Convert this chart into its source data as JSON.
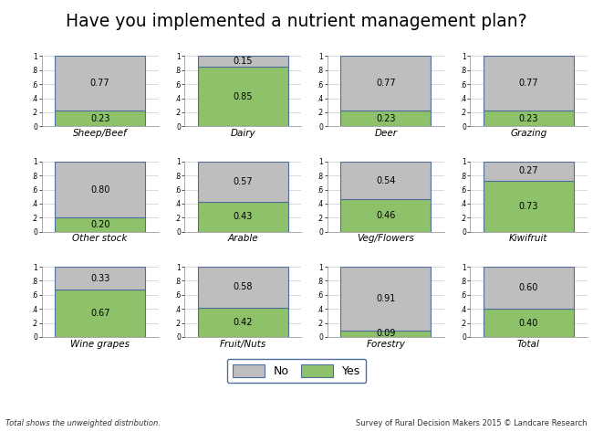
{
  "title": "Have you implemented a nutrient management plan?",
  "categories": [
    [
      "Sheep/Beef",
      "Dairy",
      "Deer",
      "Grazing"
    ],
    [
      "Other stock",
      "Arable",
      "Veg/Flowers",
      "Kiwifruit"
    ],
    [
      "Wine grapes",
      "Fruit/Nuts",
      "Forestry",
      "Total"
    ]
  ],
  "yes_values": [
    [
      0.23,
      0.85,
      0.23,
      0.23
    ],
    [
      0.2,
      0.43,
      0.46,
      0.73
    ],
    [
      0.67,
      0.42,
      0.09,
      0.4
    ]
  ],
  "no_values": [
    [
      0.77,
      0.15,
      0.77,
      0.77
    ],
    [
      0.8,
      0.57,
      0.54,
      0.27
    ],
    [
      0.33,
      0.58,
      0.91,
      0.6
    ]
  ],
  "yes_labels": [
    [
      "0.23",
      "0.85",
      "0.23",
      "0.23"
    ],
    [
      "0.20",
      "0.43",
      "0.46",
      "0.73"
    ],
    [
      "0.67",
      "0.42",
      "0.09",
      "0.40"
    ]
  ],
  "no_labels": [
    [
      "0.77",
      "0.15",
      "0.77",
      "0.77"
    ],
    [
      "0.80",
      "0.57",
      "0.54",
      "0.27"
    ],
    [
      "0.33",
      "0.58",
      "0.91",
      "0.60"
    ]
  ],
  "color_yes": "#8DC16A",
  "color_no": "#BEBEBE",
  "color_border": "#4F6E9B",
  "background_color": "#FFFFFF",
  "footer_left": "Total shows the unweighted distribution.",
  "footer_right": "Survey of Rural Decision Makers 2015 © Landcare Research",
  "legend_no": "No",
  "legend_yes": "Yes",
  "ytick_labels": [
    "0",
    ".2",
    ".4",
    ".6",
    ".8",
    "1"
  ],
  "ytick_values": [
    0.0,
    0.2,
    0.4,
    0.6,
    0.8,
    1.0
  ]
}
